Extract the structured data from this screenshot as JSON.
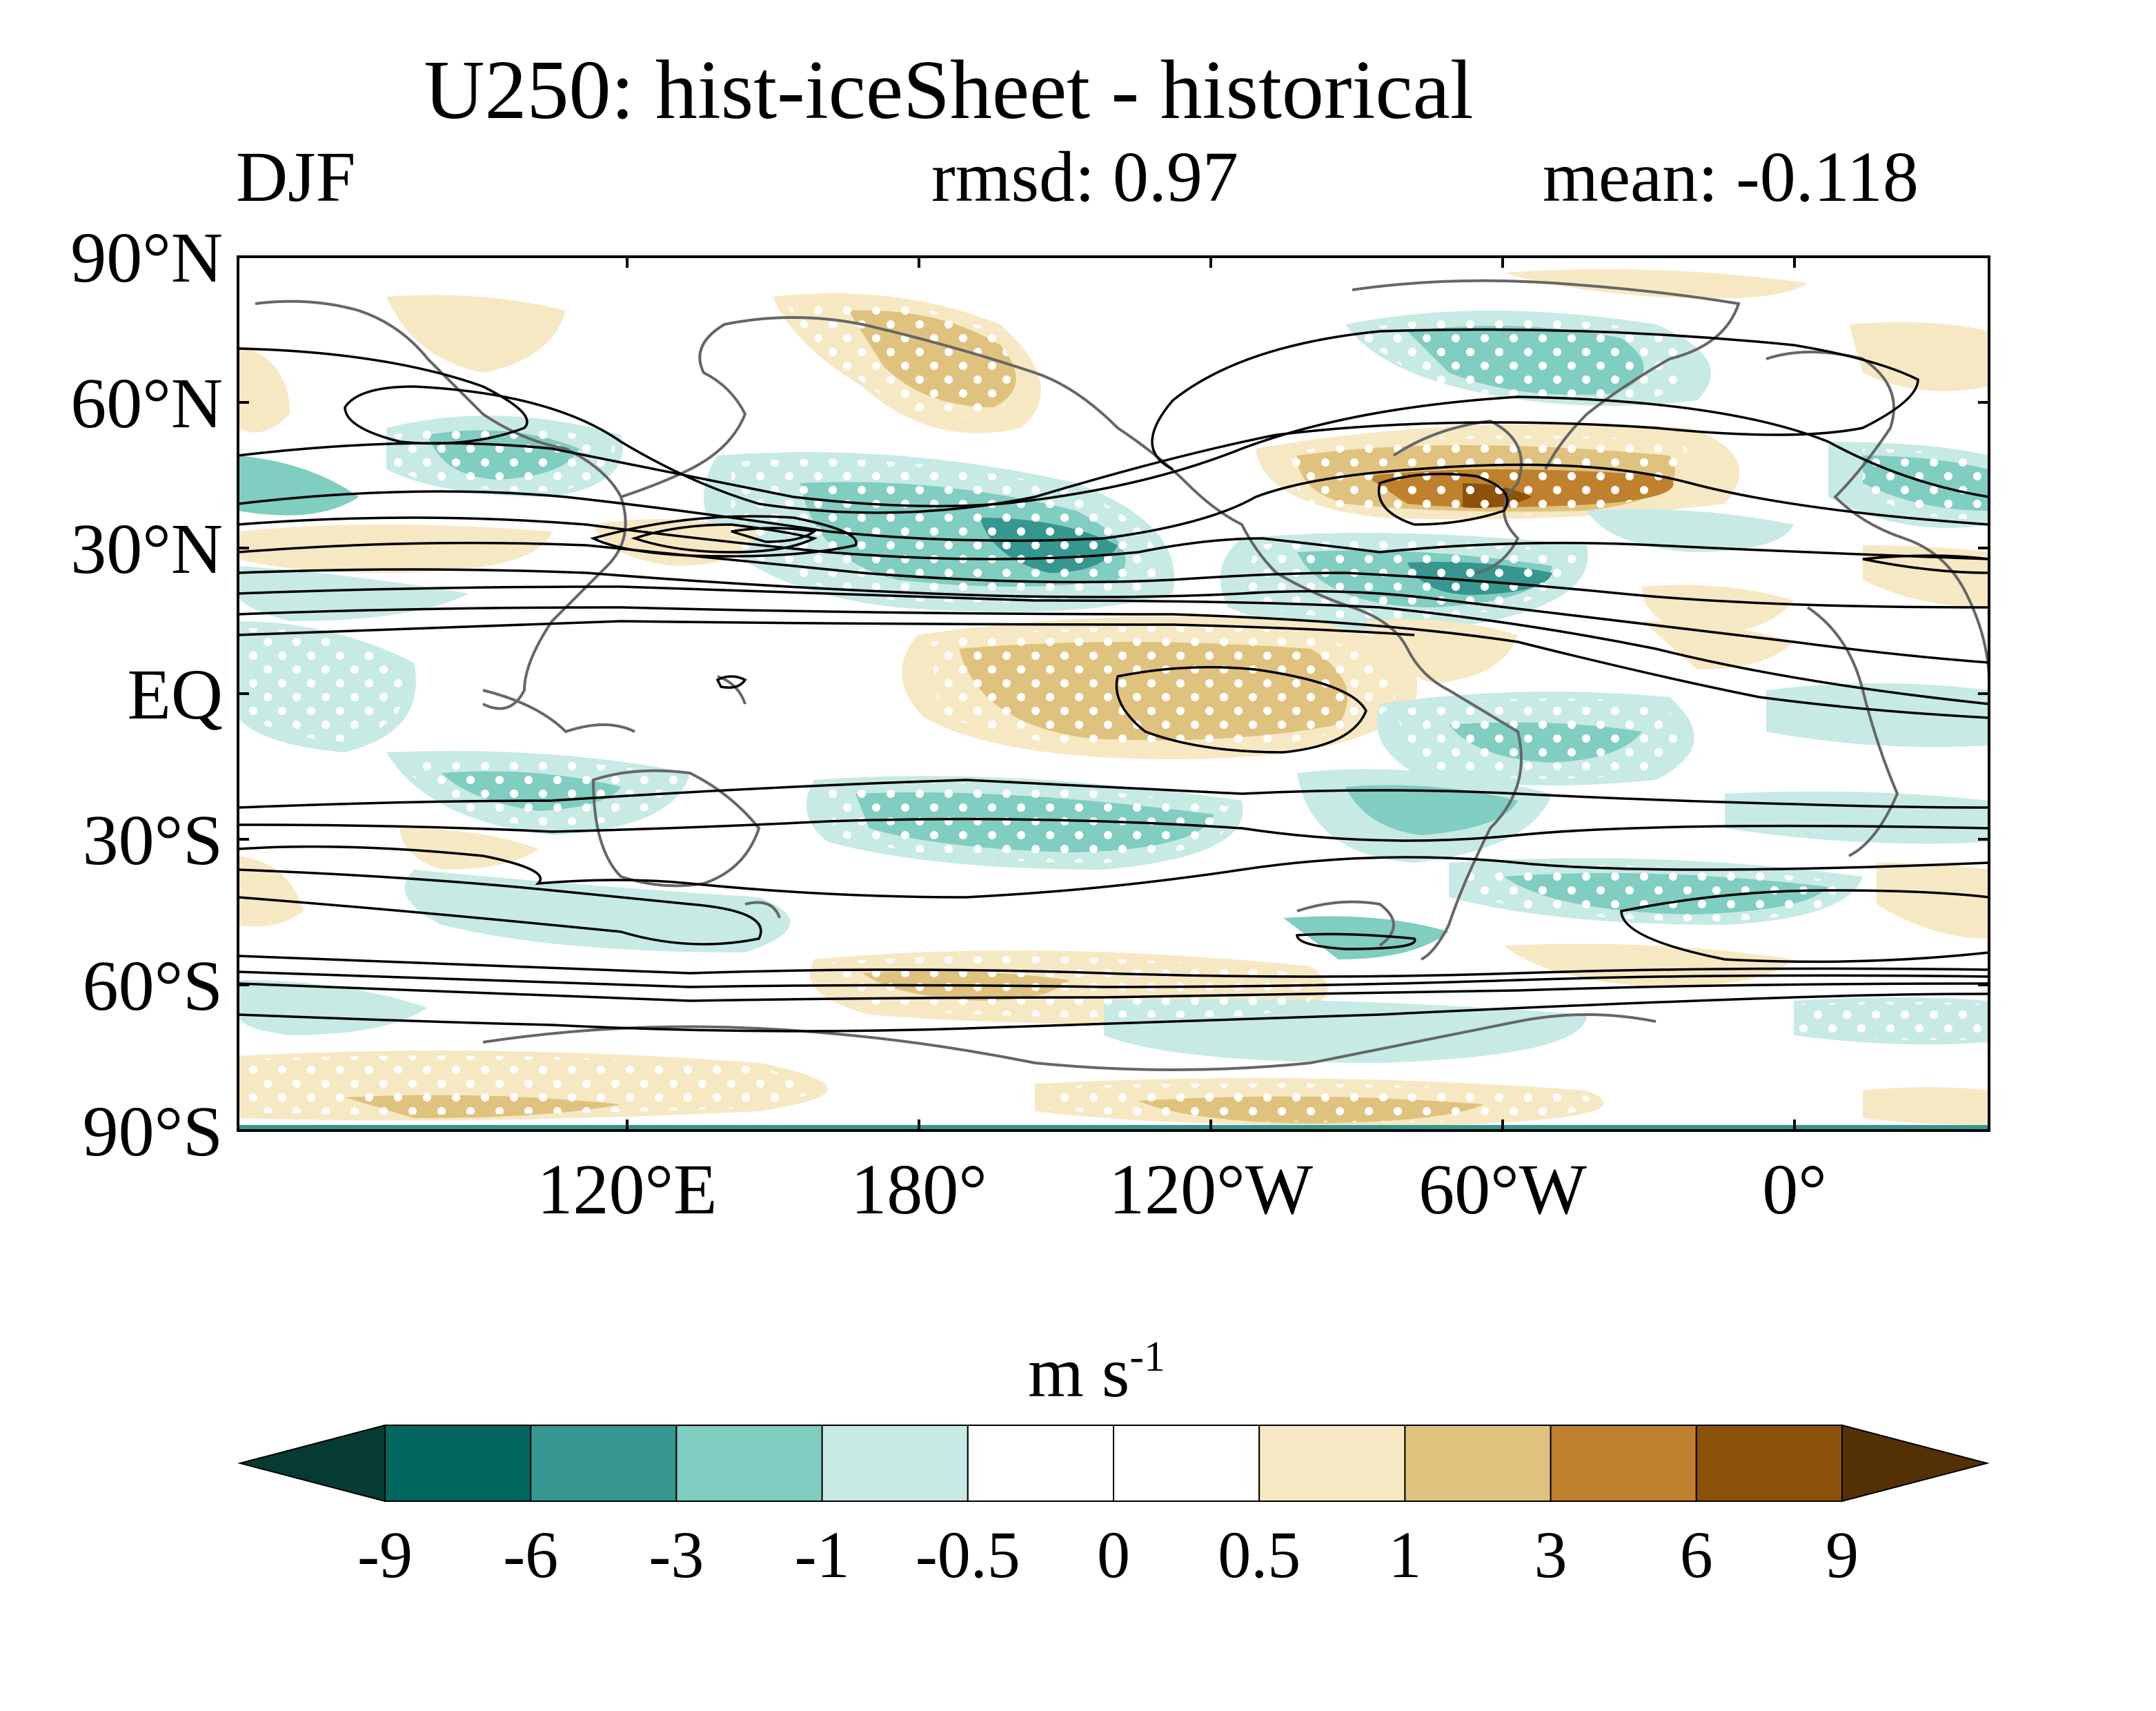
{
  "title": "U250: hist-iceSheet - historical",
  "season": "DJF",
  "rmsd_text": "rmsd: 0.97",
  "mean_text": "mean: -0.118",
  "units": {
    "base": "m s",
    "exponent": "-1"
  },
  "axes": {
    "lat_labels": [
      {
        "lat": 90,
        "text": "90°N"
      },
      {
        "lat": 60,
        "text": "60°N"
      },
      {
        "lat": 30,
        "text": "30°N"
      },
      {
        "lat": 0,
        "text": "EQ"
      },
      {
        "lat": -30,
        "text": "30°S"
      },
      {
        "lat": -60,
        "text": "60°S"
      },
      {
        "lat": -90,
        "text": "90°S"
      }
    ],
    "lon_labels": [
      {
        "lon": 120,
        "text": "120°E"
      },
      {
        "lon": 180,
        "text": "180°"
      },
      {
        "lon": 240,
        "text": "120°W"
      },
      {
        "lon": 300,
        "text": "60°W"
      },
      {
        "lon": 360,
        "text": "0°"
      }
    ],
    "lon_range": [
      40,
      400
    ],
    "lat_range": [
      -90,
      90
    ]
  },
  "colorbar": {
    "levels": [
      "-9",
      "-6",
      "-3",
      "-1",
      "-0.5",
      "0",
      "0.5",
      "1",
      "3",
      "6",
      "9"
    ],
    "colors": [
      "#063b33",
      "#01665e",
      "#35978f",
      "#80cdc1",
      "#c7eae5",
      "#ffffff",
      "#ffffff",
      "#f6e8c3",
      "#dfc27d",
      "#bf812d",
      "#8c510a",
      "#543005"
    ]
  },
  "chart_data": {
    "type": "heatmap",
    "variable": "U250",
    "season": "DJF",
    "units": "m s-1",
    "features": [
      {
        "sign": "positive",
        "lon": 300,
        "lat": 38,
        "level": 3
      },
      {
        "sign": "negative",
        "lon": 285,
        "lat": 22,
        "level": -3
      },
      {
        "sign": "negative",
        "lon": 205,
        "lat": 28,
        "level": -3
      },
      {
        "sign": "negative",
        "lon": 100,
        "lat": 48,
        "level": -1
      },
      {
        "sign": "negative",
        "lon": 280,
        "lat": 72,
        "level": -1
      },
      {
        "sign": "positive",
        "lon": 230,
        "lat": -2,
        "level": 1
      },
      {
        "sign": "positive",
        "lon": 175,
        "lat": 72,
        "level": 1
      },
      {
        "sign": "negative",
        "lon": 200,
        "lat": -33,
        "level": -1
      },
      {
        "sign": "negative",
        "lon": 335,
        "lat": -45,
        "level": -1
      },
      {
        "sign": "positive",
        "lon": 190,
        "lat": -66,
        "level": 1
      },
      {
        "sign": "positive",
        "lon": 235,
        "lat": -87,
        "level": 1
      }
    ]
  }
}
